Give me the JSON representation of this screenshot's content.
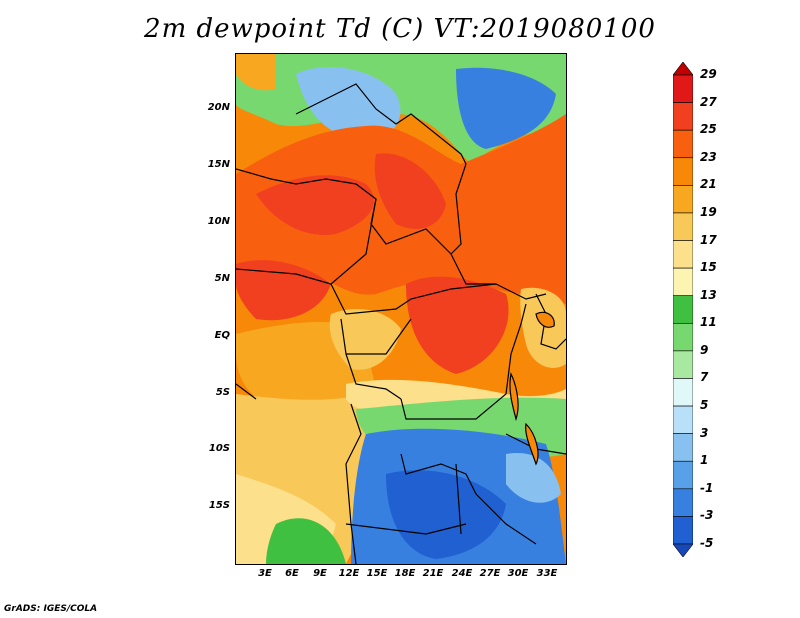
{
  "title": "2m dewpoint Td (C) VT:2019080100",
  "credit": "GrADS: IGES/COLA",
  "map": {
    "lat_labels": [
      "20N",
      "15N",
      "10N",
      "5N",
      "EQ",
      "5S",
      "10S",
      "15S"
    ],
    "lon_labels": [
      "3E",
      "6E",
      "9E",
      "12E",
      "15E",
      "18E",
      "21E",
      "24E",
      "27E",
      "30E",
      "33E"
    ]
  },
  "colorbar": {
    "levels": [
      "29",
      "27",
      "25",
      "23",
      "21",
      "19",
      "17",
      "15",
      "13",
      "11",
      "9",
      "7",
      "5",
      "3",
      "1",
      "-1",
      "-3",
      "-5"
    ],
    "colors": [
      "#c00000",
      "#e01818",
      "#f04020",
      "#f86010",
      "#f88808",
      "#f8a820",
      "#f8c858",
      "#fce08c",
      "#fcf4b0",
      "#40c040",
      "#78d870",
      "#a8e8a0",
      "#e0f8f8",
      "#b8e0f8",
      "#88c0f0",
      "#58a0e8",
      "#3880e0",
      "#2060d0",
      "#1848b8"
    ]
  }
}
